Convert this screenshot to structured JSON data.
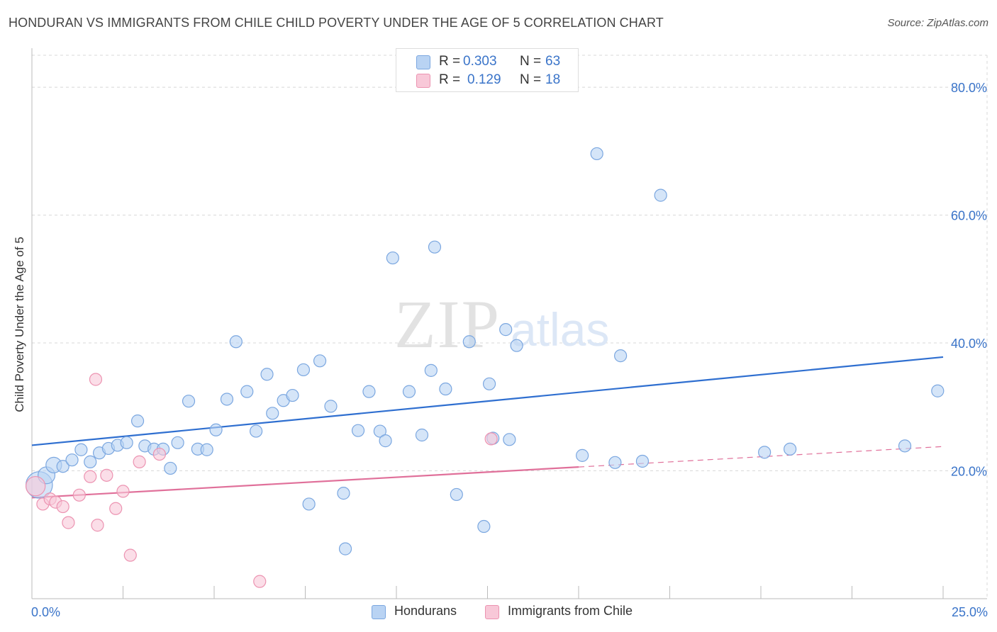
{
  "title": "HONDURAN VS IMMIGRANTS FROM CHILE CHILD POVERTY UNDER THE AGE OF 5 CORRELATION CHART",
  "source": "Source: ZipAtlas.com",
  "watermark": {
    "zip": "ZIP",
    "atlas": "atlas"
  },
  "colors": {
    "blue_fill": "#b9d3f3",
    "blue_stroke": "#7ba7e0",
    "blue_line": "#2f6fd0",
    "pink_fill": "#f8c8d8",
    "pink_stroke": "#ec93b1",
    "pink_line": "#e0709a",
    "tick_label": "#3a74c9",
    "grid": "#d8d8d8"
  },
  "legend_top": [
    {
      "r_label": "R =",
      "r_value": "0.303",
      "n_label": "N =",
      "n_value": "63"
    },
    {
      "r_label": "R =",
      "r_value": "0.129",
      "n_label": "N =",
      "n_value": "18"
    }
  ],
  "chart_data": {
    "type": "scatter",
    "title": "HONDURAN VS IMMIGRANTS FROM CHILE CHILD POVERTY UNDER THE AGE OF 5 CORRELATION CHART",
    "xlabel": "",
    "ylabel": "Child Poverty Under the Age of 5",
    "xlim": [
      0,
      25
    ],
    "ylim": [
      0,
      85
    ],
    "x_tick_labels": [
      "0.0%",
      "25.0%"
    ],
    "y_ticks": [
      20,
      40,
      60,
      80
    ],
    "y_tick_labels": [
      "20.0%",
      "40.0%",
      "60.0%",
      "80.0%"
    ],
    "grid": true,
    "series": [
      {
        "name": "Hondurans",
        "color": "#7ba7e0",
        "trend": {
          "x0": 0,
          "y0": 24.0,
          "x1": 25,
          "y1": 37.8
        },
        "points": [
          [
            0.2,
            17.8,
            2.2
          ],
          [
            0.4,
            19.3,
            1.4
          ],
          [
            0.6,
            20.9,
            1.3
          ],
          [
            0.85,
            20.7,
            1.0
          ],
          [
            1.1,
            21.7,
            1.0
          ],
          [
            1.35,
            23.3,
            1.0
          ],
          [
            1.6,
            21.4,
            1.0
          ],
          [
            1.85,
            22.8,
            1.0
          ],
          [
            2.1,
            23.5,
            1.0
          ],
          [
            2.35,
            24.0,
            1.0
          ],
          [
            2.6,
            24.4,
            1.0
          ],
          [
            2.9,
            27.8,
            1.0
          ],
          [
            3.1,
            23.9,
            1.0
          ],
          [
            3.35,
            23.4,
            1.0
          ],
          [
            3.6,
            23.4,
            1.0
          ],
          [
            3.8,
            20.4,
            1.0
          ],
          [
            4.0,
            24.4,
            1.0
          ],
          [
            4.3,
            30.9,
            1.0
          ],
          [
            4.55,
            23.4,
            1.0
          ],
          [
            4.8,
            23.3,
            1.0
          ],
          [
            5.05,
            26.4,
            1.0
          ],
          [
            5.35,
            31.2,
            1.0
          ],
          [
            5.6,
            40.2,
            1.0
          ],
          [
            5.9,
            32.4,
            1.0
          ],
          [
            6.15,
            26.2,
            1.0
          ],
          [
            6.45,
            35.1,
            1.0
          ],
          [
            6.6,
            29.0,
            1.0
          ],
          [
            6.9,
            31.0,
            1.0
          ],
          [
            7.15,
            31.8,
            1.0
          ],
          [
            7.45,
            35.8,
            1.0
          ],
          [
            7.6,
            14.8,
            1.0
          ],
          [
            7.9,
            37.2,
            1.0
          ],
          [
            8.2,
            30.1,
            1.0
          ],
          [
            8.55,
            16.5,
            1.0
          ],
          [
            8.6,
            7.8,
            1.0
          ],
          [
            8.95,
            26.3,
            1.0
          ],
          [
            9.25,
            32.4,
            1.0
          ],
          [
            9.55,
            26.2,
            1.0
          ],
          [
            9.7,
            24.7,
            1.0
          ],
          [
            9.9,
            53.3,
            1.0
          ],
          [
            10.35,
            32.4,
            1.0
          ],
          [
            10.7,
            25.6,
            1.0
          ],
          [
            10.95,
            35.7,
            1.0
          ],
          [
            11.05,
            55.0,
            1.0
          ],
          [
            11.35,
            32.8,
            1.0
          ],
          [
            11.65,
            16.3,
            1.0
          ],
          [
            12.0,
            40.2,
            1.0
          ],
          [
            12.4,
            11.3,
            1.0
          ],
          [
            12.55,
            33.6,
            1.0
          ],
          [
            13.0,
            42.1,
            1.0
          ],
          [
            12.65,
            25.1,
            1.0
          ],
          [
            13.1,
            24.9,
            1.0
          ],
          [
            13.3,
            39.6,
            1.0
          ],
          [
            15.1,
            22.4,
            1.0
          ],
          [
            15.5,
            69.6,
            1.0
          ],
          [
            16.15,
            38.0,
            1.0
          ],
          [
            16.0,
            21.3,
            1.0
          ],
          [
            16.75,
            21.5,
            1.0
          ],
          [
            17.25,
            63.1,
            1.0
          ],
          [
            20.1,
            22.9,
            1.0
          ],
          [
            20.8,
            23.4,
            1.0
          ],
          [
            23.95,
            23.9,
            1.0
          ],
          [
            24.85,
            32.5,
            1.0
          ]
        ]
      },
      {
        "name": "Immigrants from Chile",
        "color": "#ec93b1",
        "trend": {
          "x0": 0,
          "y0": 15.8,
          "x1": 15,
          "y1": 20.6,
          "dashed_to_x": 25,
          "dashed_to_y": 23.8
        },
        "points": [
          [
            0.1,
            17.6,
            1.6
          ],
          [
            0.3,
            14.8,
            1.0
          ],
          [
            0.5,
            15.6,
            1.0
          ],
          [
            0.65,
            15.1,
            1.0
          ],
          [
            0.85,
            14.4,
            1.0
          ],
          [
            1.0,
            11.9,
            1.0
          ],
          [
            1.3,
            16.2,
            1.0
          ],
          [
            1.6,
            19.1,
            1.0
          ],
          [
            1.8,
            11.5,
            1.0
          ],
          [
            1.75,
            34.3,
            1.0
          ],
          [
            2.05,
            19.3,
            1.0
          ],
          [
            2.3,
            14.1,
            1.0
          ],
          [
            2.5,
            16.8,
            1.0
          ],
          [
            2.7,
            6.8,
            1.0
          ],
          [
            2.95,
            21.4,
            1.0
          ],
          [
            3.5,
            22.6,
            1.0
          ],
          [
            6.25,
            2.7,
            1.0
          ],
          [
            12.6,
            25.0,
            1.0
          ]
        ]
      }
    ]
  },
  "legend_bottom": [
    "Hondurans",
    "Immigrants from Chile"
  ]
}
